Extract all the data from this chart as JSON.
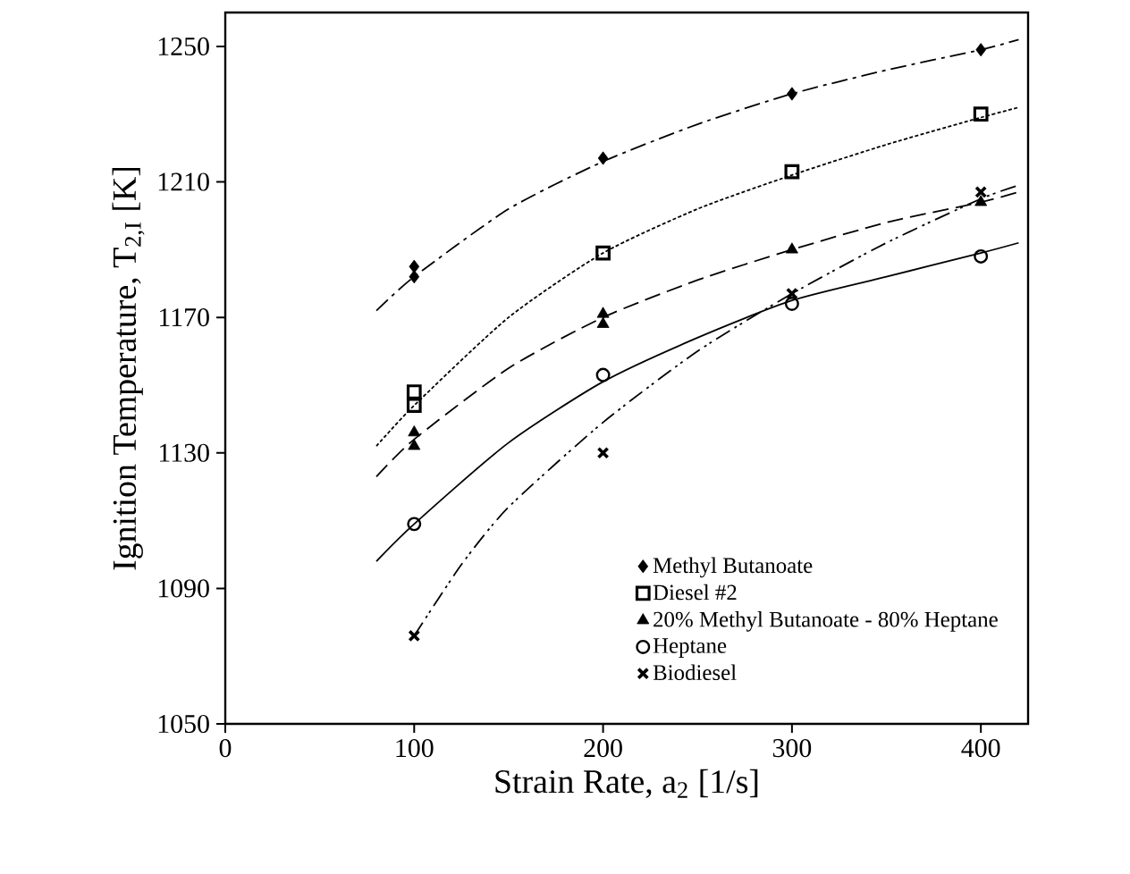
{
  "chart_data": {
    "type": "scatter",
    "xlabel": "Strain Rate, a$_{2}$ [1/s]",
    "ylabel": "Ignition Temperature, T$_{2,I}$ [K]",
    "xlim": [
      0,
      425
    ],
    "ylim": [
      1050,
      1260
    ],
    "xticks": [
      0,
      100,
      200,
      300,
      400
    ],
    "yticks": [
      1050,
      1090,
      1130,
      1170,
      1210,
      1250
    ],
    "grid": false,
    "legend": "bottom right",
    "series": [
      {
        "name": "Methyl Butanoate",
        "color": "#000000",
        "marker": "diamond",
        "x": [
          100,
          100,
          200,
          300,
          400
        ],
        "values": [
          1185,
          1182,
          1217,
          1236,
          1249
        ]
      },
      {
        "name": "Diesel #2",
        "color": "#000000",
        "marker": "square",
        "x": [
          100,
          100,
          200,
          300,
          400
        ],
        "values": [
          1148,
          1144,
          1189,
          1213,
          1230
        ]
      },
      {
        "name": "20% Methyl Butanoate - 80% Heptane",
        "color": "#000000",
        "marker": "triangle",
        "x": [
          100,
          100,
          200,
          200,
          300,
          400
        ],
        "values": [
          1136,
          1132,
          1171,
          1168,
          1190,
          1204
        ]
      },
      {
        "name": "Heptane",
        "color": "#000000",
        "marker": "circle",
        "x": [
          100,
          200,
          300,
          400
        ],
        "values": [
          1109,
          1153,
          1174,
          1188
        ]
      },
      {
        "name": "Biodiesel",
        "color": "#000000",
        "marker": "cross",
        "x": [
          100,
          200,
          300,
          400
        ],
        "values": [
          1076,
          1130,
          1177,
          1207
        ]
      },
      {
        "type": "line",
        "color": "#000000",
        "line_style": "dashdot",
        "marker": "none",
        "x": [
          80,
          100,
          150,
          200,
          250,
          300,
          350,
          400,
          420
        ],
        "values": [
          1172,
          1182,
          1202,
          1216,
          1227,
          1236,
          1243,
          1249,
          1252
        ]
      },
      {
        "type": "line",
        "color": "#000000",
        "line_style": "dotted",
        "marker": "none",
        "x": [
          80,
          100,
          150,
          200,
          250,
          300,
          350,
          400,
          420
        ],
        "values": [
          1132,
          1144,
          1170,
          1189,
          1202,
          1212,
          1221,
          1229,
          1232
        ]
      },
      {
        "type": "line",
        "color": "#000000",
        "line_style": "dashed",
        "marker": "none",
        "x": [
          80,
          100,
          150,
          200,
          250,
          300,
          350,
          400,
          420
        ],
        "values": [
          1123,
          1134,
          1155,
          1170,
          1181,
          1190,
          1198,
          1204,
          1207
        ]
      },
      {
        "type": "line",
        "color": "#000000",
        "line_style": "solid",
        "marker": "none",
        "x": [
          80,
          100,
          150,
          200,
          250,
          300,
          350,
          400,
          420
        ],
        "values": [
          1098,
          1109,
          1133,
          1151,
          1164,
          1175,
          1182,
          1189,
          1192
        ]
      },
      {
        "type": "line",
        "color": "#000000",
        "line_style": "dashdotdot",
        "marker": "none",
        "x": [
          100,
          125,
          150,
          200,
          250,
          300,
          350,
          400,
          420
        ],
        "values": [
          1076,
          1097,
          1114,
          1139,
          1160,
          1177,
          1192,
          1205,
          1209
        ]
      }
    ]
  }
}
